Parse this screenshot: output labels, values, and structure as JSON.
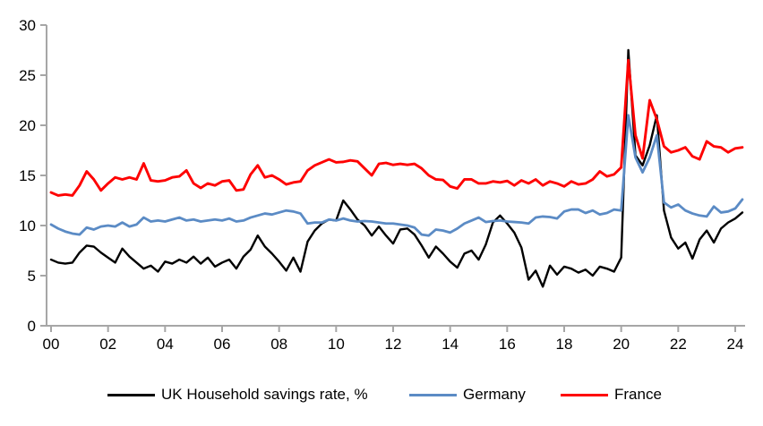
{
  "chart_data": {
    "type": "line",
    "title": "",
    "xlabel": "",
    "ylabel": "",
    "grid": false,
    "legend_position": "bottom",
    "x_axis": {
      "start": "2000Q1",
      "end": "2024Q2",
      "frequency": "quarterly",
      "tick_labels": [
        "00",
        "02",
        "04",
        "06",
        "08",
        "10",
        "12",
        "14",
        "16",
        "18",
        "20",
        "22",
        "24"
      ]
    },
    "y_axis": {
      "min": 0,
      "max": 30,
      "tick_step": 5,
      "tick_labels": [
        "0",
        "5",
        "10",
        "15",
        "20",
        "25",
        "30"
      ]
    },
    "series": [
      {
        "name": "UK Household savings rate, %",
        "color": "#000000",
        "values": [
          6.6,
          6.3,
          6.2,
          6.3,
          7.3,
          8.0,
          7.9,
          7.3,
          6.8,
          6.3,
          7.7,
          6.9,
          6.3,
          5.7,
          6.0,
          5.4,
          6.4,
          6.2,
          6.6,
          6.3,
          6.9,
          6.2,
          6.8,
          5.9,
          6.3,
          6.6,
          5.7,
          6.9,
          7.6,
          9.0,
          7.9,
          7.2,
          6.4,
          5.5,
          6.8,
          5.4,
          8.4,
          9.5,
          10.2,
          10.6,
          10.5,
          12.5,
          11.6,
          10.6,
          10.0,
          9.0,
          9.9,
          9.0,
          8.2,
          9.6,
          9.7,
          9.1,
          8.0,
          6.8,
          7.9,
          7.2,
          6.4,
          5.8,
          7.2,
          7.5,
          6.6,
          8.1,
          10.3,
          11.0,
          10.2,
          9.3,
          7.8,
          4.6,
          5.5,
          3.9,
          6.0,
          5.1,
          5.9,
          5.7,
          5.3,
          5.6,
          5.0,
          5.9,
          5.7,
          5.4,
          6.8,
          27.5,
          17.0,
          16.0,
          18.0,
          21.0,
          11.5,
          8.8,
          7.7,
          8.3,
          6.7,
          8.6,
          9.5,
          8.3,
          9.7,
          10.3,
          10.7,
          11.3
        ]
      },
      {
        "name": "Germany",
        "color": "#5b8bc5",
        "values": [
          10.1,
          9.7,
          9.4,
          9.2,
          9.1,
          9.8,
          9.6,
          9.9,
          10.0,
          9.9,
          10.3,
          9.9,
          10.1,
          10.8,
          10.4,
          10.5,
          10.4,
          10.6,
          10.8,
          10.5,
          10.6,
          10.4,
          10.5,
          10.6,
          10.5,
          10.7,
          10.4,
          10.5,
          10.8,
          11.0,
          11.2,
          11.1,
          11.3,
          11.5,
          11.4,
          11.2,
          10.2,
          10.3,
          10.3,
          10.6,
          10.5,
          10.7,
          10.5,
          10.4,
          10.45,
          10.4,
          10.3,
          10.2,
          10.2,
          10.1,
          10.0,
          9.8,
          9.1,
          9.0,
          9.6,
          9.5,
          9.3,
          9.7,
          10.2,
          10.5,
          10.8,
          10.35,
          10.45,
          10.5,
          10.4,
          10.35,
          10.3,
          10.2,
          10.8,
          10.9,
          10.85,
          10.7,
          11.4,
          11.6,
          11.6,
          11.25,
          11.5,
          11.1,
          11.25,
          11.6,
          11.5,
          21.0,
          16.8,
          15.3,
          16.8,
          19.0,
          12.3,
          11.8,
          12.1,
          11.5,
          11.2,
          11.0,
          10.9,
          11.9,
          11.3,
          11.4,
          11.7,
          12.6
        ]
      },
      {
        "name": "France",
        "color": "#fe0000",
        "values": [
          13.3,
          13.0,
          13.1,
          13.0,
          14.0,
          15.4,
          14.6,
          13.5,
          14.2,
          14.8,
          14.6,
          14.8,
          14.6,
          16.2,
          14.5,
          14.4,
          14.5,
          14.8,
          14.9,
          15.5,
          14.2,
          13.75,
          14.2,
          14.0,
          14.4,
          14.5,
          13.5,
          13.6,
          15.1,
          16.0,
          14.8,
          15.0,
          14.6,
          14.1,
          14.3,
          14.4,
          15.5,
          16.0,
          16.3,
          16.6,
          16.3,
          16.35,
          16.5,
          16.4,
          15.7,
          15.0,
          16.15,
          16.25,
          16.05,
          16.15,
          16.05,
          16.15,
          15.7,
          15.0,
          14.6,
          14.55,
          13.9,
          13.7,
          14.6,
          14.6,
          14.2,
          14.2,
          14.4,
          14.3,
          14.45,
          14.0,
          14.5,
          14.2,
          14.6,
          14.0,
          14.4,
          14.2,
          13.9,
          14.4,
          14.1,
          14.2,
          14.6,
          15.4,
          14.9,
          15.1,
          15.8,
          26.5,
          19.0,
          16.7,
          22.5,
          20.6,
          17.9,
          17.3,
          17.5,
          17.8,
          16.9,
          16.6,
          18.4,
          17.9,
          17.8,
          17.3,
          17.7,
          17.8
        ]
      }
    ]
  },
  "legend": {
    "uk_label": "UK Household savings rate, %",
    "germany_label": "Germany",
    "france_label": "France"
  },
  "colors": {
    "uk": "#000000",
    "germany": "#5b8bc5",
    "france": "#fe0000",
    "axis": "#a6a6a6",
    "label": "#000000",
    "background": "#ffffff"
  }
}
